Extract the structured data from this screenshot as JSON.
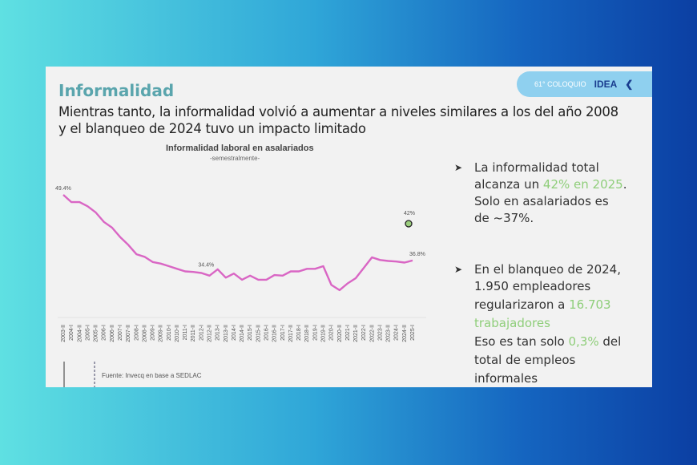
{
  "header": {
    "title": "Informalidad",
    "subtitle_lines": [
      "Mientras tanto, la informalidad volvió a aumentar a niveles similares a los del año 2008",
      "y el blanqueo de 2024 tuvo un impacto limitado"
    ],
    "badge_text": "61° COLOQUIO",
    "logo": "IDEA"
  },
  "chart_data": {
    "type": "line",
    "title": "Informalidad laboral en asalariados",
    "subtitle": "-semestralmente-",
    "categories": [
      "2003-II",
      "2004-I",
      "2004-II",
      "2005-I",
      "2005-II",
      "2006-I",
      "2006-II",
      "2007-I",
      "2007-II",
      "2008-I",
      "2008-II",
      "2009-I",
      "2009-II",
      "2010-I",
      "2010-II",
      "2011-I",
      "2011-II",
      "2012-I",
      "2012-II",
      "2013-I",
      "2013-II",
      "2014-I",
      "2014-II",
      "2015-I",
      "2015-II",
      "2016-I",
      "2016-II",
      "2017-I",
      "2017-II",
      "2018-I",
      "2018-II",
      "2019-I",
      "2019-II",
      "2020-I",
      "2020-II",
      "2021-I",
      "2021-II",
      "2022-I",
      "2022-II",
      "2023-I",
      "2023-II",
      "2024-I",
      "2024-II",
      "2025-I"
    ],
    "values": [
      49.4,
      48.0,
      48.0,
      47.2,
      46.0,
      44.2,
      43.1,
      41.3,
      39.8,
      38.0,
      37.5,
      36.5,
      36.2,
      35.7,
      35.2,
      34.7,
      34.6,
      34.4,
      33.9,
      35.1,
      33.5,
      34.3,
      33.1,
      33.9,
      33.1,
      33.1,
      34.0,
      33.9,
      34.7,
      34.7,
      35.2,
      35.2,
      35.7,
      32.1,
      31.1,
      32.4,
      33.4,
      35.4,
      37.4,
      36.9,
      36.7,
      36.6,
      36.4,
      36.8
    ],
    "data_labels": [
      {
        "index": 0,
        "text": "49.4%"
      },
      {
        "index": 17,
        "text": "34.4%"
      },
      {
        "index": 43,
        "text": "36.8%"
      }
    ],
    "highlight_point": {
      "label": "42%",
      "value": 42,
      "color": "#9ccf7e"
    },
    "line_color": "#d966c4",
    "grid": false,
    "source": "Fuente: Invecq en base a SEDLAC"
  },
  "bullets": [
    {
      "lines": [
        [
          {
            "t": "La informalidad total"
          }
        ],
        [
          {
            "t": "alcanza un "
          },
          {
            "t": "42% en 2025",
            "hl": true
          },
          {
            "t": "."
          }
        ],
        [
          {
            "t": "Solo en asalariados es"
          }
        ],
        [
          {
            "t": "de ~37%."
          }
        ]
      ]
    },
    {
      "lines": [
        [
          {
            "t": "En el blanqueo de 2024,"
          }
        ],
        [
          {
            "t": "1.950 empleadores"
          }
        ],
        [
          {
            "t": "regularizaron a "
          },
          {
            "t": "16.703",
            "hl": true
          }
        ],
        [
          {
            "t": "trabajadores",
            "hl": true
          }
        ],
        [
          {
            "t": "Eso es tan solo "
          },
          {
            "t": "0,3%",
            "hl": true
          },
          {
            "t": " del"
          }
        ],
        [
          {
            "t": "total de empleos"
          }
        ],
        [
          {
            "t": "informales"
          }
        ]
      ]
    }
  ],
  "colors": {
    "accent_green": "#8fce7a",
    "title": "#5aa5ad"
  }
}
